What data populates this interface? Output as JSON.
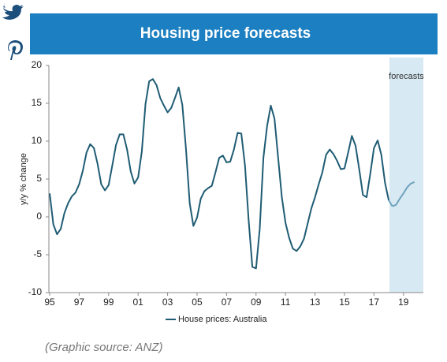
{
  "chart_data": {
    "type": "line",
    "title": "Housing price forecasts",
    "ylabel": "y/y % change",
    "source": "(Graphic source: ANZ)",
    "xlim": [
      1995,
      2020.35
    ],
    "ylim": [
      -10,
      20
    ],
    "yticks": [
      -10,
      -5,
      0,
      5,
      10,
      15,
      20
    ],
    "xticks": [
      {
        "value": 1995,
        "label": "95"
      },
      {
        "value": 1997,
        "label": "97"
      },
      {
        "value": 1999,
        "label": "99"
      },
      {
        "value": 2001,
        "label": "01"
      },
      {
        "value": 2003,
        "label": "03"
      },
      {
        "value": 2005,
        "label": "05"
      },
      {
        "value": 2007,
        "label": "07"
      },
      {
        "value": 2009,
        "label": "09"
      },
      {
        "value": 2011,
        "label": "11"
      },
      {
        "value": 2013,
        "label": "13"
      },
      {
        "value": 2015,
        "label": "15"
      },
      {
        "value": 2017,
        "label": "17"
      },
      {
        "value": 2019,
        "label": "19"
      }
    ],
    "grid": false,
    "legend": "bottom",
    "forecast_region": {
      "label": "forecasts",
      "xlim": [
        2018.05,
        2020.35
      ],
      "color": "#d7e9f2",
      "line_color": "#6fa3bc"
    },
    "x": [
      1995,
      1995.25,
      1995.5,
      1995.75,
      1996,
      1996.25,
      1996.5,
      1996.75,
      1997,
      1997.25,
      1997.5,
      1997.75,
      1998,
      1998.25,
      1998.5,
      1998.75,
      1999,
      1999.25,
      1999.5,
      1999.75,
      2000,
      2000.25,
      2000.5,
      2000.75,
      2001,
      2001.25,
      2001.5,
      2001.75,
      2002,
      2002.25,
      2002.5,
      2002.75,
      2003,
      2003.25,
      2003.5,
      2003.75,
      2004,
      2004.25,
      2004.5,
      2004.75,
      2005,
      2005.25,
      2005.5,
      2005.75,
      2006,
      2006.25,
      2006.5,
      2006.75,
      2007,
      2007.25,
      2007.5,
      2007.75,
      2008,
      2008.25,
      2008.5,
      2008.75,
      2009,
      2009.25,
      2009.5,
      2009.75,
      2010,
      2010.25,
      2010.5,
      2010.75,
      2011,
      2011.25,
      2011.5,
      2011.75,
      2012,
      2012.25,
      2012.5,
      2012.75,
      2013,
      2013.25,
      2013.5,
      2013.75,
      2014,
      2014.25,
      2014.5,
      2014.75,
      2015,
      2015.25,
      2015.5,
      2015.75,
      2016,
      2016.25,
      2016.5,
      2016.75,
      2017,
      2017.25,
      2017.5,
      2017.75,
      2018,
      2018.25,
      2018.5,
      2018.75,
      2019,
      2019.25,
      2019.5,
      2019.75
    ],
    "series": [
      {
        "name": "House prices: Australia",
        "color": "#1f5c74",
        "values": [
          3.1,
          -1,
          -2.3,
          -1.6,
          0.5,
          1.8,
          2.7,
          3.2,
          4.3,
          6.1,
          8.5,
          9.6,
          9.1,
          7,
          4.3,
          3.5,
          4.2,
          6.8,
          9.5,
          10.9,
          10.9,
          8.9,
          6,
          4.4,
          5.2,
          8.6,
          14.9,
          17.9,
          18.2,
          17.4,
          15.7,
          14.7,
          13.8,
          14.4,
          15.7,
          17.1,
          14.8,
          8.9,
          1.8,
          -1.2,
          -0.1,
          2.4,
          3.4,
          3.8,
          4.1,
          5.9,
          7.8,
          8.1,
          7.2,
          7.3,
          8.9,
          11.1,
          11,
          6.8,
          -0.5,
          -6.6,
          -6.8,
          -1.6,
          7.8,
          12,
          14.7,
          13,
          7.8,
          2.6,
          -0.8,
          -2.8,
          -4.2,
          -4.5,
          -3.9,
          -2.9,
          -0.9,
          1.1,
          2.6,
          4.3,
          5.9,
          8.2,
          8.9,
          8.3,
          7.4,
          6.3,
          6.4,
          8.5,
          10.7,
          9.4,
          6.3,
          2.9,
          2.6,
          5.7,
          9.1,
          10.1,
          8.2,
          4.5,
          2.2,
          1.4,
          1.6,
          2.4,
          3.1,
          3.9,
          4.4,
          4.6
        ]
      }
    ]
  }
}
